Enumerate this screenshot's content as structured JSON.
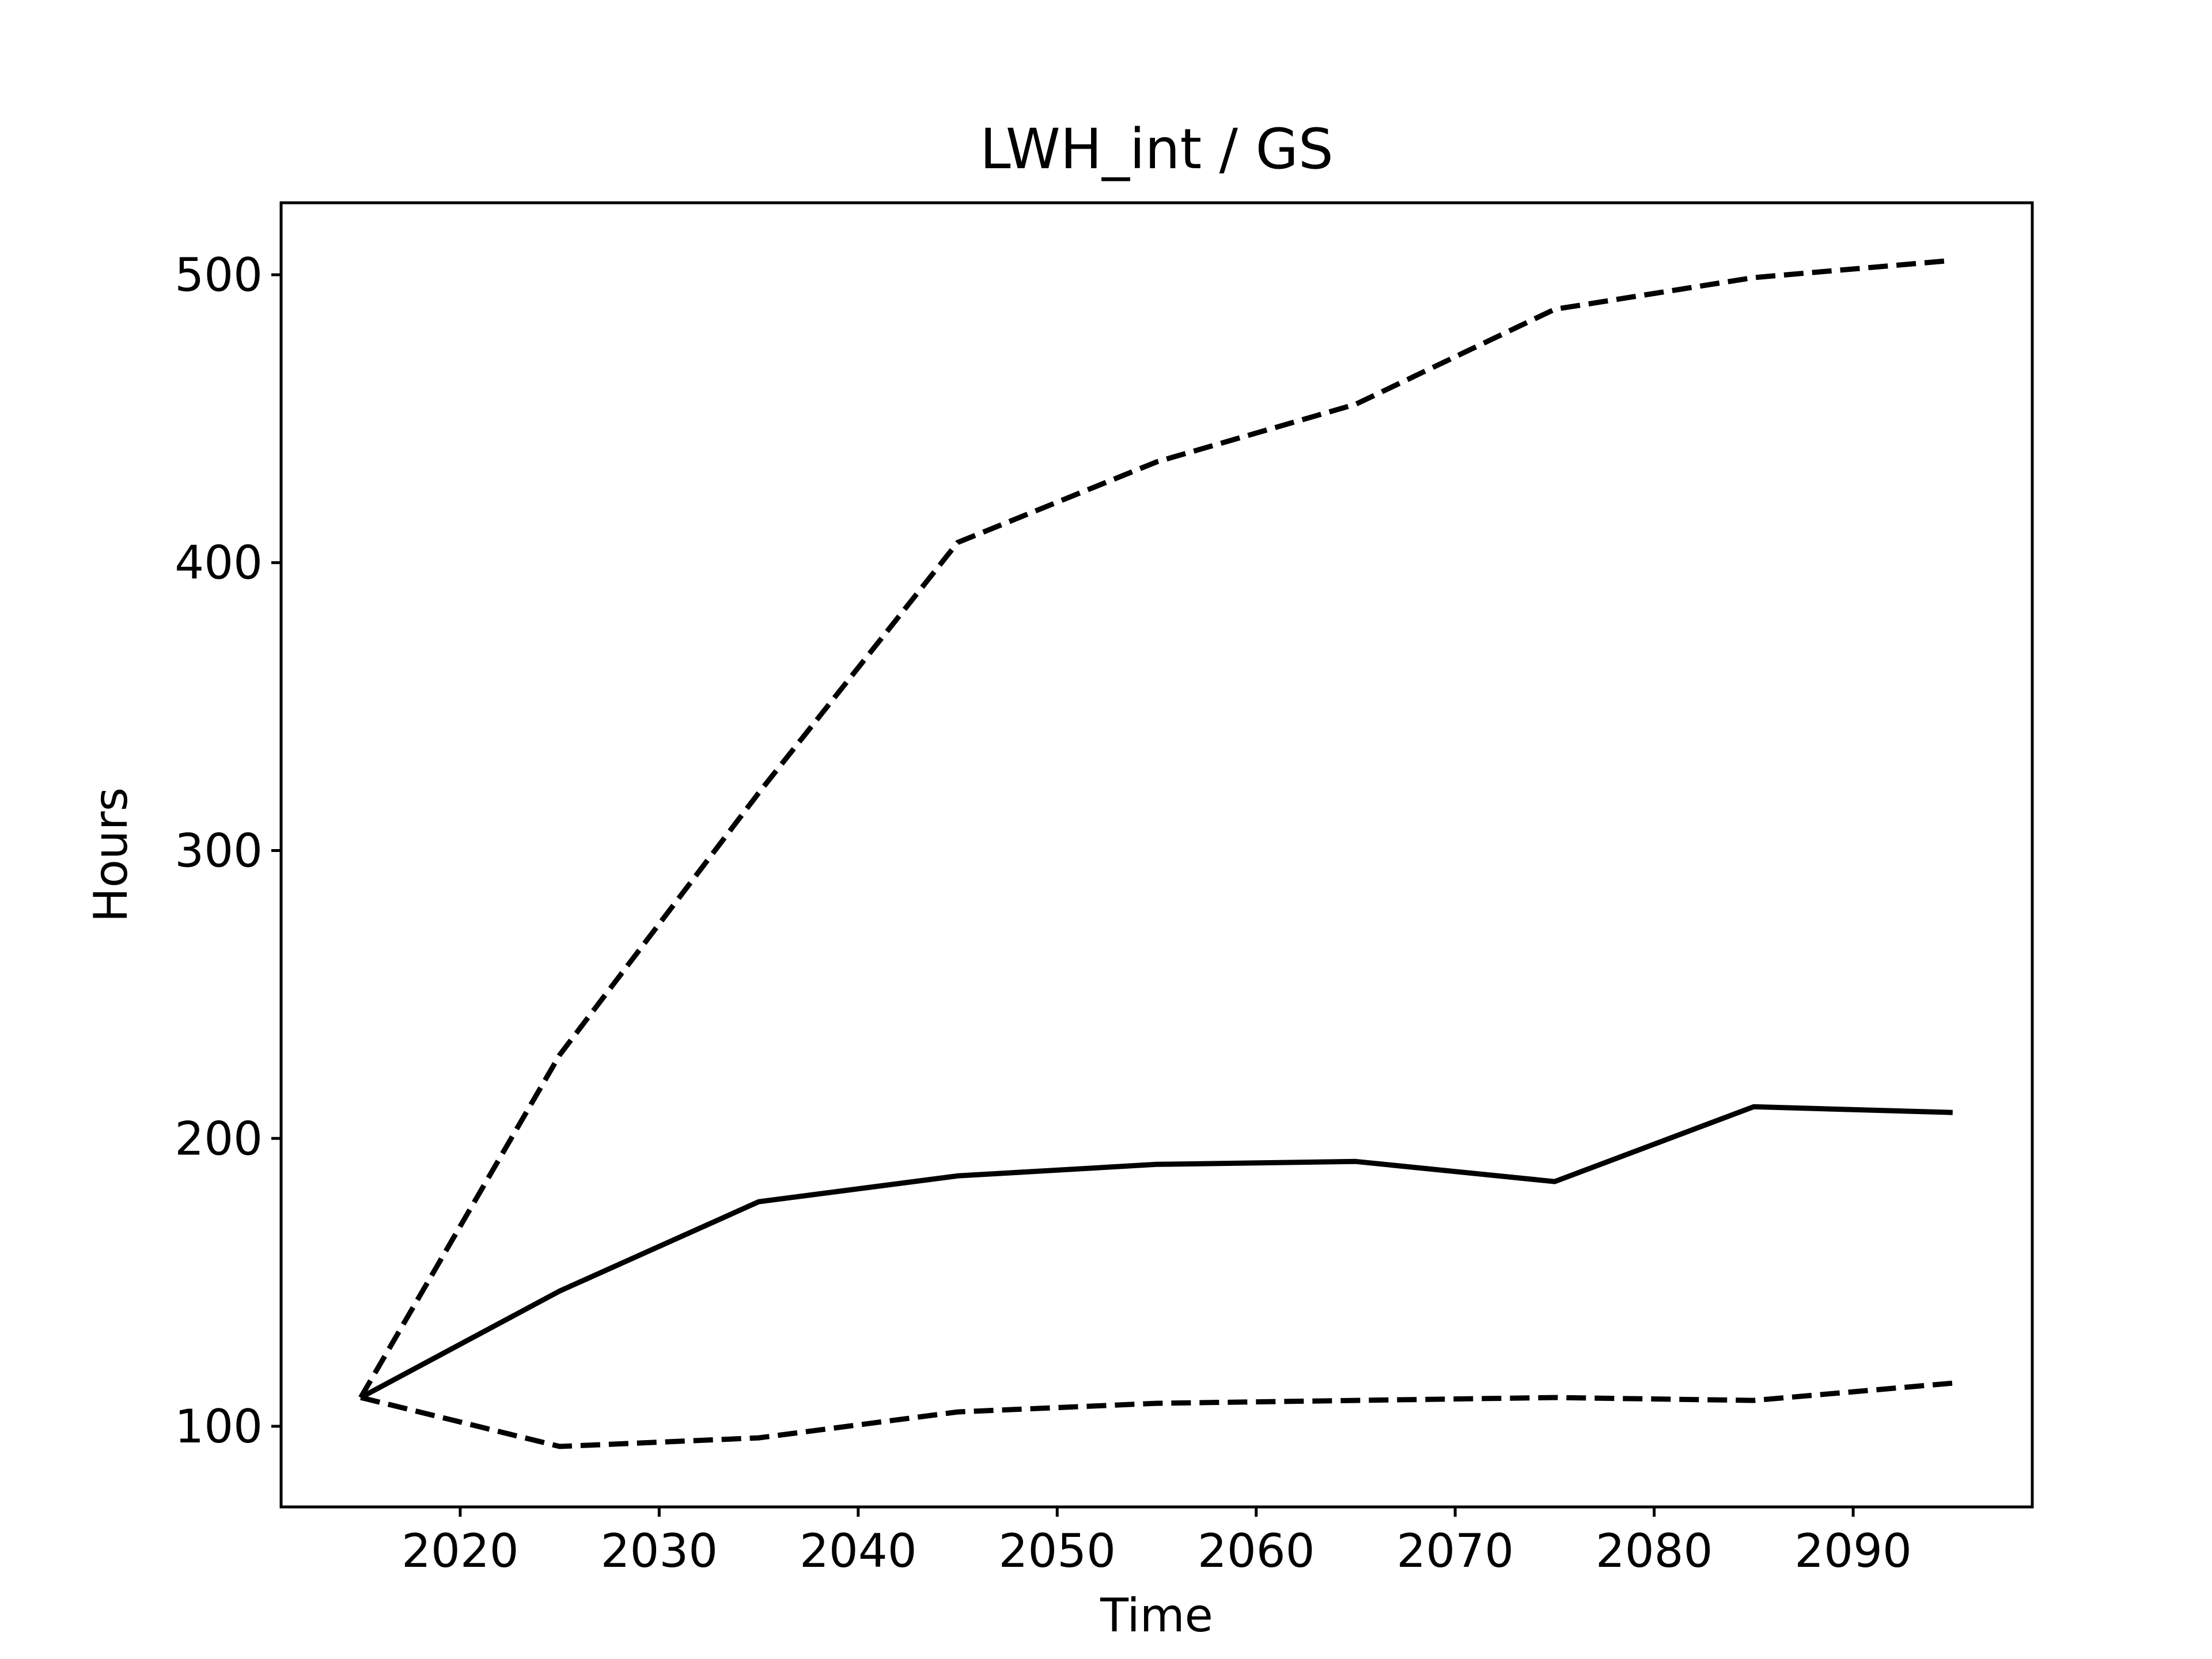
{
  "chart_data": {
    "type": "line",
    "title": "LWH_int / GS",
    "xlabel": "Time",
    "ylabel": "Hours",
    "xlim": [
      2011,
      2099
    ],
    "ylim": [
      72,
      525
    ],
    "x": [
      2015,
      2025,
      2035,
      2045,
      2055,
      2065,
      2075,
      2085,
      2095
    ],
    "xticks": [
      2020,
      2030,
      2040,
      2050,
      2060,
      2070,
      2080,
      2090
    ],
    "yticks": [
      100,
      200,
      300,
      400,
      500
    ],
    "grid": false,
    "series": [
      {
        "style": "solid",
        "values": [
          110,
          147,
          178,
          187,
          191,
          192,
          185,
          211,
          209
        ]
      },
      {
        "style": "dashed",
        "values": [
          110,
          229,
          320,
          407,
          435,
          455,
          488,
          499,
          505
        ]
      },
      {
        "style": "dashed",
        "values": [
          110,
          93,
          96,
          105,
          108,
          109,
          110,
          109,
          115
        ]
      }
    ],
    "colors": {
      "line": "#000000",
      "axes": "#000000",
      "background": "#ffffff"
    }
  }
}
